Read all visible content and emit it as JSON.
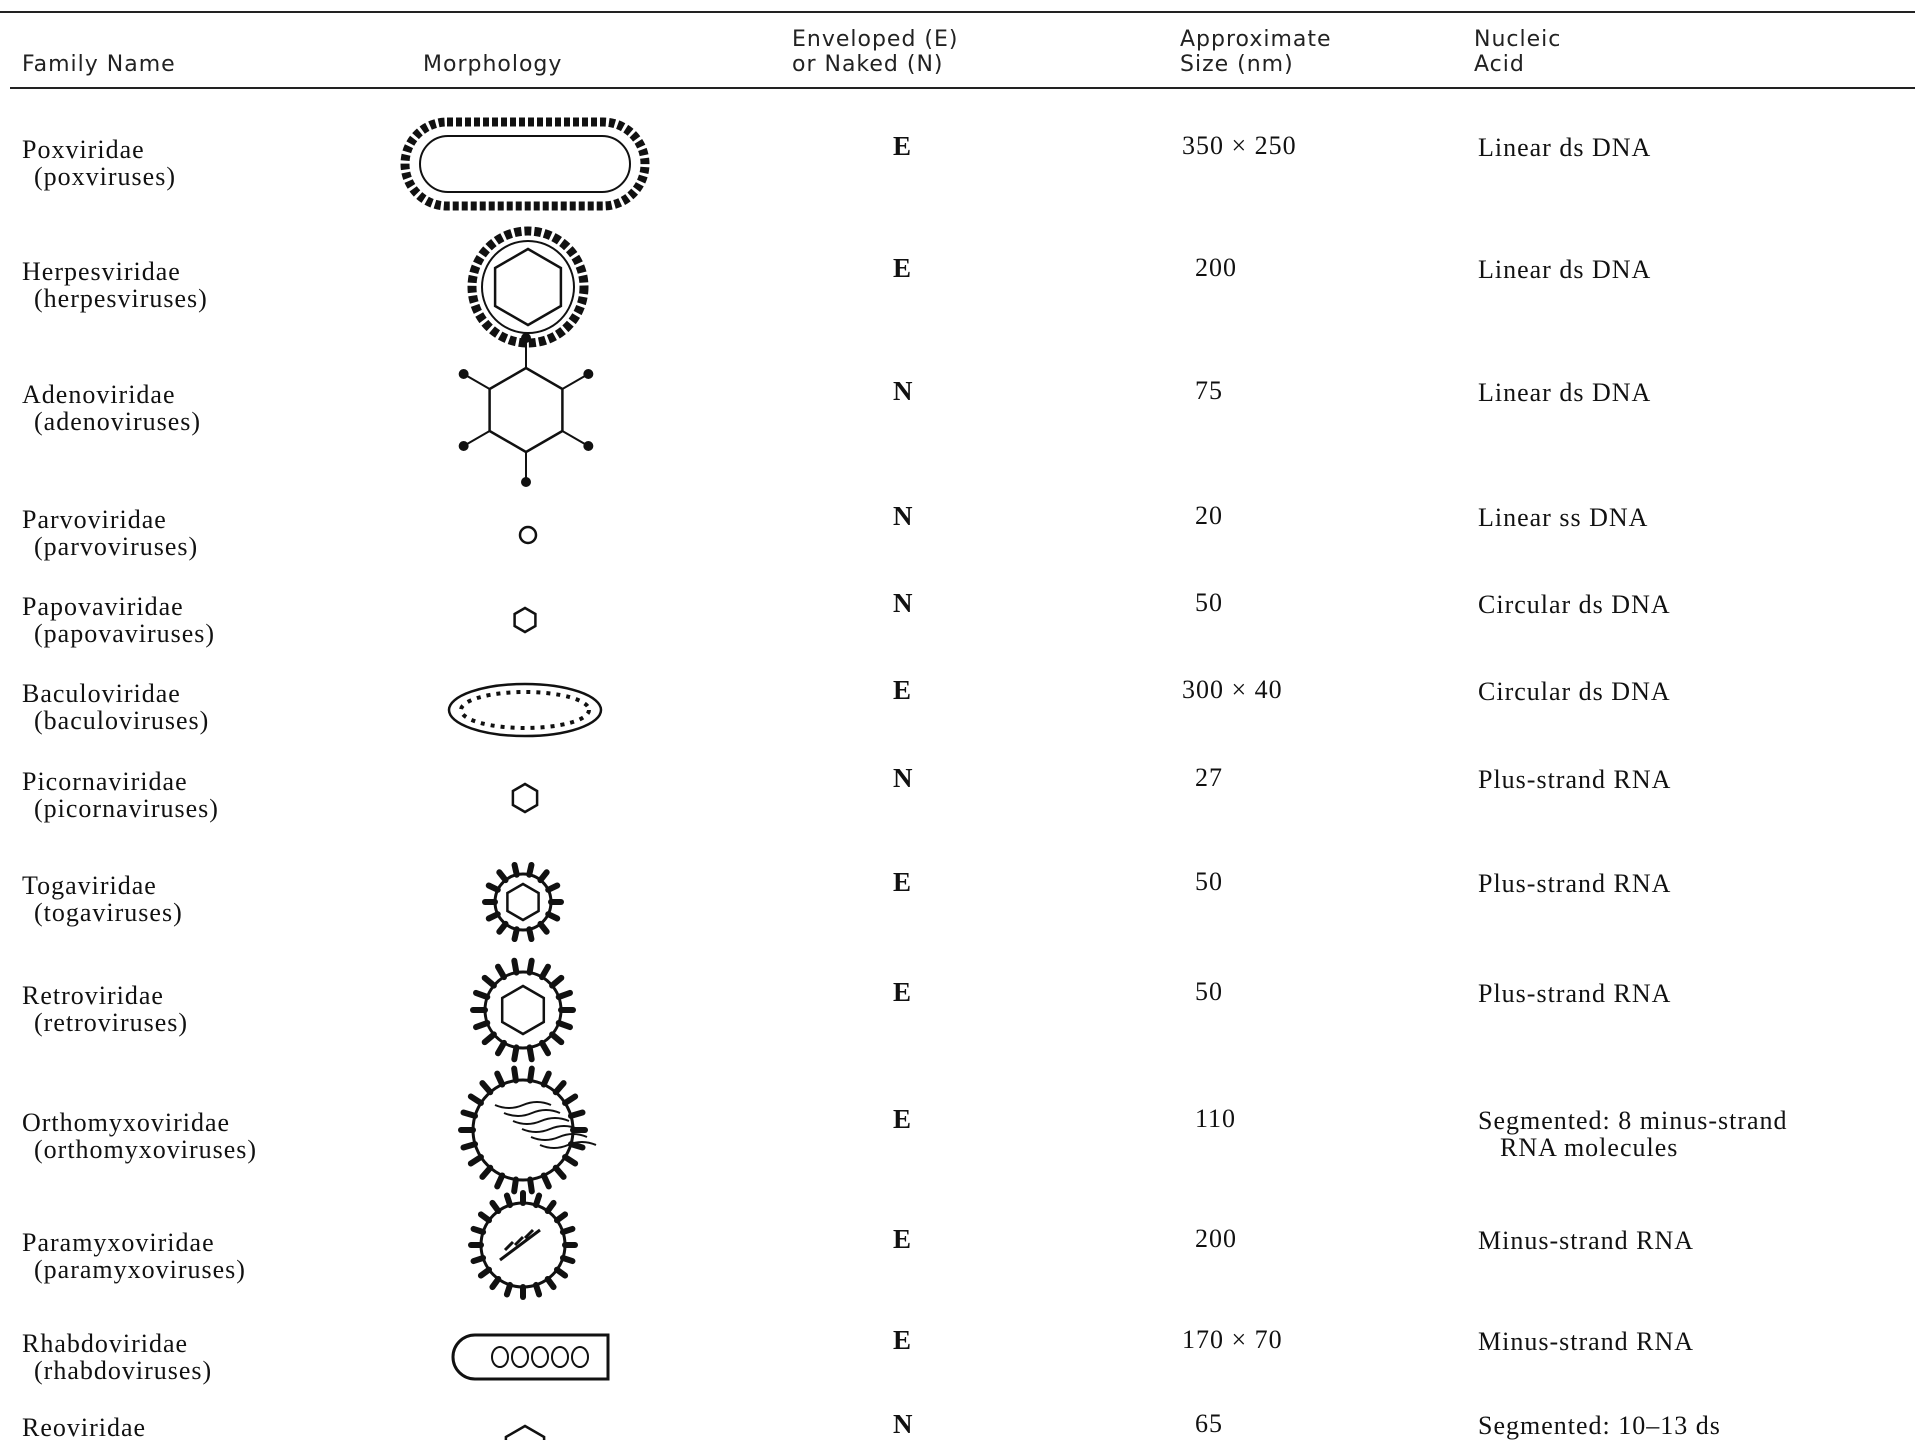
{
  "table": {
    "header": [
      [
        "Family Name"
      ],
      [
        "Morphology"
      ],
      [
        "Enveloped (E)",
        "or Naked (N)"
      ],
      [
        "Approximate",
        "Size (nm)"
      ],
      [
        "Nucleic",
        "Acid"
      ]
    ],
    "rows": [
      {
        "family": "Poxviridae",
        "common": "(poxviruses)",
        "envelope": "E",
        "size": "350 × 250",
        "nucleic": [
          "Linear ds DNA"
        ]
      },
      {
        "family": "Herpesviridae",
        "common": "(herpesviruses)",
        "envelope": "E",
        "size": "200",
        "nucleic": [
          "Linear ds DNA"
        ]
      },
      {
        "family": "Adenoviridae",
        "common": "(adenoviruses)",
        "envelope": "N",
        "size": "75",
        "nucleic": [
          "Linear ds DNA"
        ]
      },
      {
        "family": "Parvoviridae",
        "common": "(parvoviruses)",
        "envelope": "N",
        "size": "20",
        "nucleic": [
          "Linear ss DNA"
        ]
      },
      {
        "family": "Papovaviridae",
        "common": "(papovaviruses)",
        "envelope": "N",
        "size": "50",
        "nucleic": [
          "Circular ds DNA"
        ]
      },
      {
        "family": "Baculoviridae",
        "common": "(baculoviruses)",
        "envelope": "E",
        "size": "300 × 40",
        "nucleic": [
          "Circular ds DNA"
        ]
      },
      {
        "family": "Picornaviridae",
        "common": "(picornaviruses)",
        "envelope": "N",
        "size": "27",
        "nucleic": [
          "Plus-strand RNA"
        ]
      },
      {
        "family": "Togaviridae",
        "common": "(togaviruses)",
        "envelope": "E",
        "size": "50",
        "nucleic": [
          "Plus-strand RNA"
        ]
      },
      {
        "family": "Retroviridae",
        "common": "(retroviruses)",
        "envelope": "E",
        "size": "50",
        "nucleic": [
          "Plus-strand RNA"
        ]
      },
      {
        "family": "Orthomyxoviridae",
        "common": "(orthomyxoviruses)",
        "envelope": "E",
        "size": "110",
        "nucleic": [
          "Segmented: 8 minus-strand",
          "RNA molecules"
        ]
      },
      {
        "family": "Paramyxoviridae",
        "common": "(paramyxoviruses)",
        "envelope": "E",
        "size": "200",
        "nucleic": [
          "Minus-strand RNA"
        ]
      },
      {
        "family": "Rhabdoviridae",
        "common": "(rhabdoviruses)",
        "envelope": "E",
        "size": "170 × 70",
        "nucleic": [
          "Minus-strand RNA"
        ]
      },
      {
        "family": "Reoviridae",
        "common": "",
        "envelope": "N",
        "size": "65",
        "nucleic": [
          "Segmented: 10–13 ds"
        ]
      }
    ]
  }
}
